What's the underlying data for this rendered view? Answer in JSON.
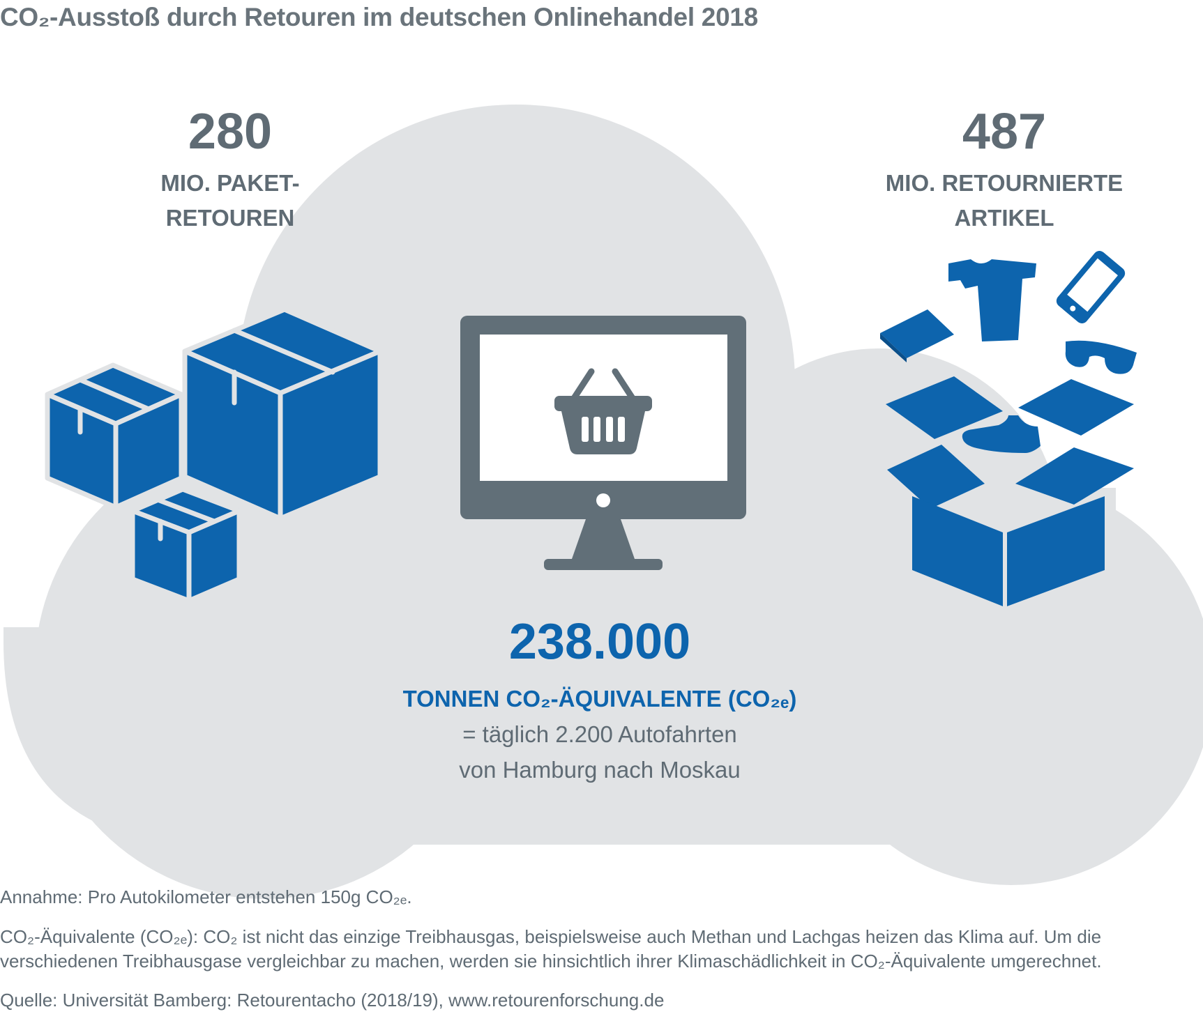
{
  "title": "CO₂-Ausstoß durch Retouren im deutschen Onlinehandel 2018",
  "left_stat": {
    "number": "280",
    "line1": "MIO. PAKET-",
    "line2": "RETOUREN"
  },
  "right_stat": {
    "number": "487",
    "line1": "MIO. RETOURNIERTE",
    "line2": "ARTIKEL"
  },
  "center_stat": {
    "number": "238.000",
    "unit": "TONNEN CO₂-ÄQUIVALENTE (CO₂ₑ)",
    "line1": "= täglich 2.200 Autofahrten",
    "line2": "von Hamburg nach Moskau"
  },
  "footnotes": {
    "assumption": "Annahme: Pro Autokilometer entstehen 150g CO₂ₑ.",
    "definition_line1": "CO₂-Äquivalente (CO₂ₑ): CO₂ ist nicht das einzige Treibhausgas, beispielsweise auch Methan und Lachgas heizen das Klima auf. Um die",
    "definition_line2": "verschiedenen Treibhausgase vergleichbar zu machen, werden sie hinsichtlich ihrer Klimaschädlichkeit in CO₂-Äquivalente umgerechnet.",
    "source": "Quelle: Universität Bamberg: Retourentacho (2018/19), www.retourenforschung.de"
  },
  "icons": [
    "package-boxes-icon",
    "monitor-shopping-basket-icon",
    "open-box-returned-items-icon",
    "book-icon",
    "tshirt-icon",
    "smartphone-icon",
    "sunglasses-icon",
    "sneaker-icon"
  ],
  "colors": {
    "cloud": "#e1e3e5",
    "blue": "#0d64ad",
    "gray": "#5f6b74",
    "monitor": "#616f78"
  }
}
